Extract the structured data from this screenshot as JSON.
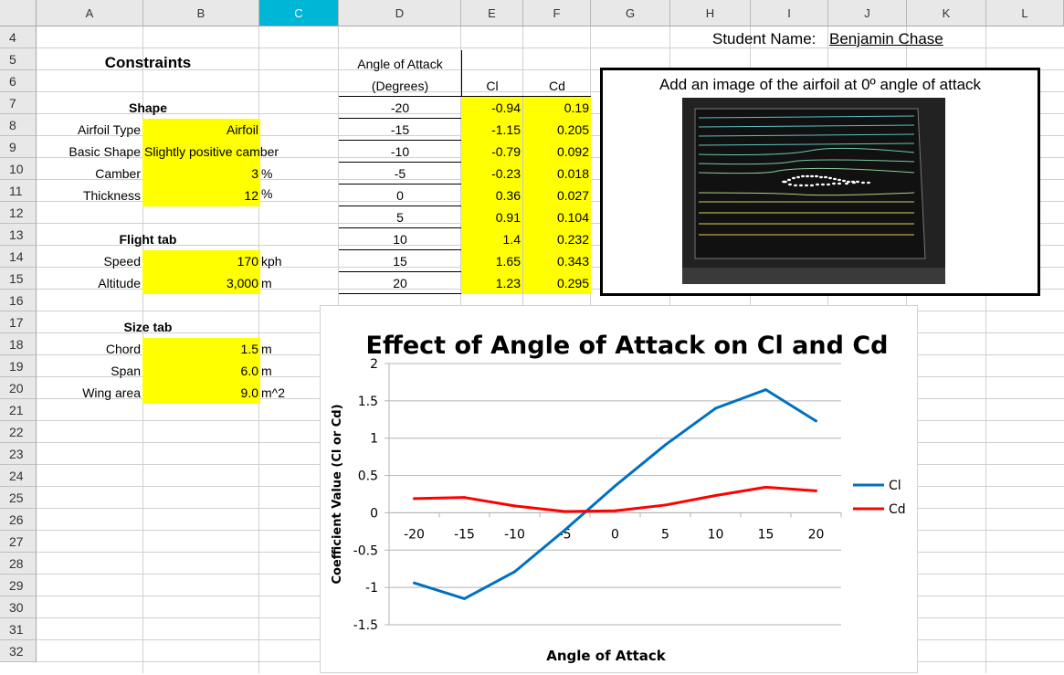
{
  "columns": [
    "A",
    "B",
    "C",
    "D",
    "E",
    "F",
    "G",
    "H",
    "I",
    "J",
    "K",
    "L"
  ],
  "selected_column": "C",
  "rows": [
    "4",
    "5",
    "6",
    "7",
    "8",
    "9",
    "10",
    "11",
    "12",
    "13",
    "14",
    "15",
    "16",
    "17",
    "18",
    "19",
    "20",
    "21",
    "22",
    "23",
    "24",
    "25",
    "26",
    "27",
    "28",
    "29",
    "30",
    "31",
    "32"
  ],
  "student": {
    "label": "Student Name:",
    "name": "Benjamin Chase"
  },
  "constraints": {
    "title": "Constraints",
    "shape_heading": "Shape",
    "airfoil_type_label": "Airfoil Type",
    "airfoil_type_value": "Airfoil",
    "basic_shape_label": "Basic Shape",
    "basic_shape_value": "Slightly positive camber",
    "camber_label": "Camber",
    "camber_value": "3",
    "camber_unit": "%",
    "thickness_label": "Thickness",
    "thickness_value": "12",
    "thickness_unit": "%",
    "flight_heading": "Flight tab",
    "speed_label": "Speed",
    "speed_value": "170",
    "speed_unit": "kph",
    "altitude_label": "Altitude",
    "altitude_value": "3,000",
    "altitude_unit": "m",
    "size_heading": "Size tab",
    "chord_label": "Chord",
    "chord_value": "1.5",
    "chord_unit": "m",
    "span_label": "Span",
    "span_value": "6.0",
    "span_unit": "m",
    "area_label": "Wing area",
    "area_value": "9.0",
    "area_unit": "m^2"
  },
  "table": {
    "header_aoa_1": "Angle of Attack",
    "header_aoa_2": "(Degrees)",
    "header_cl": "Cl",
    "header_cd": "Cd",
    "rows": [
      {
        "aoa": "-20",
        "cl": "-0.94",
        "cd": "0.19"
      },
      {
        "aoa": "-15",
        "cl": "-1.15",
        "cd": "0.205"
      },
      {
        "aoa": "-10",
        "cl": "-0.79",
        "cd": "0.092"
      },
      {
        "aoa": "-5",
        "cl": "-0.23",
        "cd": "0.018"
      },
      {
        "aoa": "0",
        "cl": "0.36",
        "cd": "0.027"
      },
      {
        "aoa": "5",
        "cl": "0.91",
        "cd": "0.104"
      },
      {
        "aoa": "10",
        "cl": "1.4",
        "cd": "0.232"
      },
      {
        "aoa": "15",
        "cl": "1.65",
        "cd": "0.343"
      },
      {
        "aoa": "20",
        "cl": "1.23",
        "cd": "0.295"
      }
    ]
  },
  "image_box": {
    "caption": "Add an image of the airfoil at 0º angle of attack"
  },
  "chart_data": {
    "type": "line",
    "title": "Effect of Angle of Attack on Cl and Cd",
    "xlabel": "Angle of Attack",
    "ylabel": "Coefficient Value (Cl or Cd)",
    "categories": [
      "-20",
      "-15",
      "-10",
      "-5",
      "0",
      "5",
      "10",
      "15",
      "20"
    ],
    "ylim": [
      -1.5,
      2
    ],
    "yticks": [
      "2",
      "1.5",
      "1",
      "0.5",
      "0",
      "-0.5",
      "-1",
      "-1.5"
    ],
    "ytick_values": [
      2,
      1.5,
      1,
      0.5,
      0,
      -0.5,
      -1,
      -1.5
    ],
    "grid": true,
    "legend_position": "right",
    "series": [
      {
        "name": "Cl",
        "color": "#0070c0",
        "values": [
          -0.94,
          -1.15,
          -0.79,
          -0.23,
          0.36,
          0.91,
          1.4,
          1.65,
          1.23
        ]
      },
      {
        "name": "Cd",
        "color": "#ff0000",
        "values": [
          0.19,
          0.205,
          0.092,
          0.018,
          0.027,
          0.104,
          0.232,
          0.343,
          0.295
        ]
      }
    ]
  }
}
